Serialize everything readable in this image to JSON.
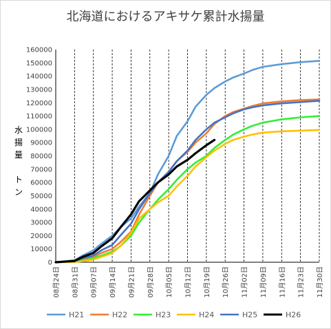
{
  "chart_data": {
    "type": "line",
    "title": "北海道におけるアキサケ累計水揚量",
    "ylabel_chars": [
      "水",
      "揚",
      "量",
      "",
      "ト",
      "ン"
    ],
    "ylim": [
      0,
      160000
    ],
    "yticks": [
      0,
      10000,
      20000,
      30000,
      40000,
      50000,
      60000,
      70000,
      80000,
      90000,
      100000,
      110000,
      120000,
      130000,
      140000,
      150000,
      160000
    ],
    "x_start": "08月24日",
    "x_end": "11月30日",
    "x_tick_labels": [
      "08月24日",
      "08月31日",
      "09月07日",
      "09月14日",
      "09月21日",
      "09月28日",
      "10月05日",
      "10月12日",
      "10月19日",
      "10月26日",
      "11月02日",
      "11月09日",
      "11月16日",
      "11月23日",
      "11月30日"
    ],
    "grid": "vertical dashed",
    "legend_position": "bottom",
    "series": [
      {
        "name": "H21",
        "color": "#5b9bd5",
        "x": [
          "08月24日",
          "08月31日",
          "09月03日",
          "09月07日",
          "09月10日",
          "09月14日",
          "09月17日",
          "09月21日",
          "09月24日",
          "09月28日",
          "10月01日",
          "10月05日",
          "10月08日",
          "10月12日",
          "10月15日",
          "10月19日",
          "10月22日",
          "10月26日",
          "10月29日",
          "11月02日",
          "11月05日",
          "11月09日",
          "11月16日",
          "11月23日",
          "11月30日"
        ],
        "values": [
          0,
          1500,
          5000,
          9000,
          14000,
          20000,
          26000,
          33000,
          42000,
          52000,
          66000,
          80000,
          95000,
          106000,
          117000,
          126000,
          131000,
          136000,
          139000,
          142000,
          144500,
          147000,
          149000,
          150500,
          151500
        ]
      },
      {
        "name": "H22",
        "color": "#ed7d31",
        "x": [
          "08月24日",
          "08月31日",
          "09月03日",
          "09月07日",
          "09月10日",
          "09月14日",
          "09月17日",
          "09月21日",
          "09月24日",
          "09月28日",
          "10月01日",
          "10月05日",
          "10月08日",
          "10月12日",
          "10月15日",
          "10月19日",
          "10月22日",
          "10月26日",
          "10月29日",
          "11月02日",
          "11月05日",
          "11月09日",
          "11月16日",
          "11月23日",
          "11月30日"
        ],
        "values": [
          0,
          500,
          2000,
          4000,
          7000,
          10000,
          15000,
          23000,
          36000,
          50000,
          60000,
          68000,
          76000,
          83000,
          90000,
          97000,
          104000,
          110000,
          113000,
          115500,
          117500,
          119500,
          121000,
          122000,
          122500
        ]
      },
      {
        "name": "H23",
        "color": "#33ee33",
        "x": [
          "08月24日",
          "08月31日",
          "09月03日",
          "09月07日",
          "09月10日",
          "09月14日",
          "09月17日",
          "09月21日",
          "09月24日",
          "09月28日",
          "10月01日",
          "10月05日",
          "10月08日",
          "10月12日",
          "10月15日",
          "10月19日",
          "10月22日",
          "10月26日",
          "10月29日",
          "11月02日",
          "11月05日",
          "11月09日",
          "11月16日",
          "11月23日",
          "11月30日"
        ],
        "values": [
          0,
          300,
          1200,
          3000,
          5000,
          8000,
          12000,
          20000,
          30000,
          40000,
          47000,
          55000,
          62000,
          70000,
          75000,
          80000,
          86000,
          92000,
          96000,
          100000,
          102500,
          105000,
          107500,
          109000,
          110000
        ]
      },
      {
        "name": "H24",
        "color": "#ffc000",
        "x": [
          "08月24日",
          "08月31日",
          "09月03日",
          "09月07日",
          "09月10日",
          "09月14日",
          "09月17日",
          "09月21日",
          "09月24日",
          "09月28日",
          "10月01日",
          "10月05日",
          "10月08日",
          "10月12日",
          "10月15日",
          "10月19日",
          "10月22日",
          "10月26日",
          "10月29日",
          "11月02日",
          "11月05日",
          "11月09日",
          "11月16日",
          "11月23日",
          "11月30日"
        ],
        "values": [
          0,
          200,
          800,
          2000,
          4000,
          7000,
          12000,
          22000,
          33000,
          40000,
          45000,
          50000,
          57000,
          65000,
          72000,
          79000,
          84000,
          89000,
          92000,
          94500,
          96000,
          97500,
          98500,
          99000,
          99500
        ]
      },
      {
        "name": "H25",
        "color": "#4472c4",
        "x": [
          "08月24日",
          "08月31日",
          "09月03日",
          "09月07日",
          "09月10日",
          "09月14日",
          "09月17日",
          "09月21日",
          "09月24日",
          "09月28日",
          "10月01日",
          "10月05日",
          "10月08日",
          "10月12日",
          "10月15日",
          "10月19日",
          "10月22日",
          "10月26日",
          "10月29日",
          "11月02日",
          "11月05日",
          "11月09日",
          "11月16日",
          "11月23日",
          "11月30日"
        ],
        "values": [
          0,
          800,
          3000,
          5000,
          9000,
          13000,
          20000,
          29000,
          40000,
          52000,
          60000,
          68000,
          76000,
          84000,
          92000,
          100000,
          105000,
          109000,
          112000,
          115000,
          116500,
          118000,
          119500,
          120500,
          121500
        ]
      },
      {
        "name": "H26",
        "color": "#000000",
        "x": [
          "08月24日",
          "08月31日",
          "09月03日",
          "09月07日",
          "09月10日",
          "09月14日",
          "09月17日",
          "09月21日",
          "09月24日",
          "09月28日",
          "10月01日",
          "10月05日",
          "10月08日",
          "10月12日",
          "10月15日",
          "10月19日",
          "10月22日"
        ],
        "values": [
          0,
          1000,
          4000,
          7000,
          12000,
          18000,
          26000,
          36000,
          46000,
          54000,
          60000,
          66000,
          72000,
          77000,
          82000,
          88000,
          92000
        ]
      }
    ]
  }
}
